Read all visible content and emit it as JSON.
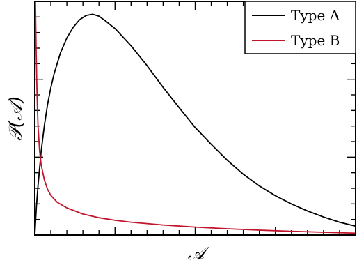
{
  "chart_data": {
    "type": "line",
    "title": "",
    "xlabel": "𝒜",
    "ylabel": "𝒫(𝒜)",
    "xlim": [
      0,
      1
    ],
    "ylim": [
      0,
      1
    ],
    "grid": false,
    "legend": {
      "position": "top-right"
    },
    "series": [
      {
        "name": "Type A",
        "color": "#000000",
        "x": [
          0.0,
          0.005,
          0.01,
          0.02,
          0.03,
          0.04,
          0.05,
          0.06,
          0.08,
          0.1,
          0.12,
          0.14,
          0.16,
          0.18,
          0.2,
          0.22,
          0.25,
          0.3,
          0.35,
          0.4,
          0.45,
          0.5,
          0.55,
          0.6,
          0.65,
          0.7,
          0.75,
          0.8,
          0.85,
          0.9,
          0.95,
          1.0
        ],
        "y": [
          0.0,
          0.12,
          0.21,
          0.36,
          0.47,
          0.56,
          0.63,
          0.69,
          0.78,
          0.844,
          0.89,
          0.922,
          0.94,
          0.945,
          0.937,
          0.917,
          0.884,
          0.81,
          0.725,
          0.632,
          0.545,
          0.46,
          0.388,
          0.32,
          0.26,
          0.21,
          0.168,
          0.133,
          0.103,
          0.077,
          0.055,
          0.038
        ]
      },
      {
        "name": "Type B",
        "color": "#c0152c",
        "x": [
          0.002,
          0.004,
          0.006,
          0.008,
          0.01,
          0.015,
          0.02,
          0.03,
          0.04,
          0.05,
          0.07,
          0.1,
          0.15,
          0.2,
          0.25,
          0.3,
          0.4,
          0.5,
          0.6,
          0.7,
          0.8,
          0.9,
          1.0
        ],
        "y": [
          1.0,
          0.82,
          0.66,
          0.55,
          0.47,
          0.36,
          0.3,
          0.235,
          0.195,
          0.17,
          0.14,
          0.116,
          0.09,
          0.074,
          0.063,
          0.055,
          0.043,
          0.034,
          0.027,
          0.021,
          0.016,
          0.012,
          0.008
        ]
      }
    ]
  }
}
